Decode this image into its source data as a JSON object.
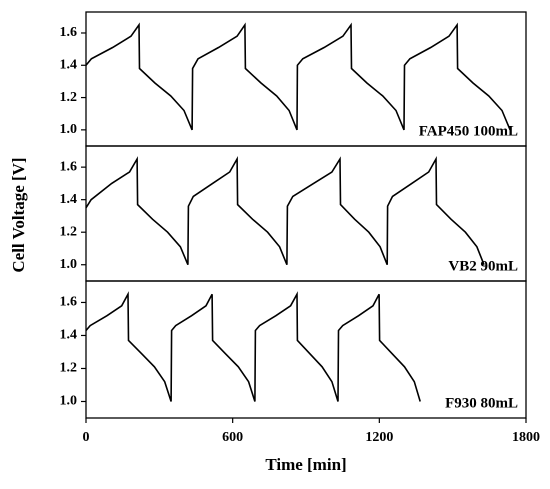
{
  "chart_data": [
    {
      "type": "line",
      "series": [
        {
          "name": "FAP450 100mL",
          "color": "#000000",
          "x": [
            0,
            22,
            109,
            184,
            217,
            219,
            282,
            347,
            401,
            434,
            436,
            458,
            542,
            618,
            650,
            652,
            716,
            780,
            831,
            863,
            865,
            887,
            974,
            1051,
            1084,
            1086,
            1149,
            1214,
            1268,
            1301,
            1303,
            1325,
            1410,
            1485,
            1518,
            1520,
            1583,
            1648,
            1702,
            1735
          ],
          "values": [
            1.4,
            1.44,
            1.51,
            1.58,
            1.65,
            1.38,
            1.29,
            1.21,
            1.12,
            1.0,
            1.38,
            1.44,
            1.51,
            1.58,
            1.65,
            1.38,
            1.29,
            1.21,
            1.12,
            1.0,
            1.4,
            1.44,
            1.51,
            1.58,
            1.65,
            1.38,
            1.29,
            1.21,
            1.12,
            1.0,
            1.4,
            1.44,
            1.51,
            1.58,
            1.65,
            1.38,
            1.29,
            1.21,
            1.12,
            1.0
          ]
        }
      ],
      "xlim": [
        0,
        1800
      ],
      "ylim": [
        0.9,
        1.73
      ],
      "yticks": [
        {
          "value": 1,
          "label": "1.0"
        },
        1.2,
        1.4,
        1.6
      ]
    },
    {
      "type": "line",
      "ylabel": "Cell Voltage [V]",
      "series": [
        {
          "name": "VB2 90mL",
          "color": "#000000",
          "x": [
            0,
            21,
            105,
            178,
            209,
            211,
            272,
            334,
            386,
            417,
            419,
            439,
            518,
            588,
            618,
            620,
            681,
            743,
            792,
            822,
            824,
            846,
            931,
            1006,
            1039,
            1041,
            1099,
            1157,
            1203,
            1232,
            1234,
            1254,
            1333,
            1402,
            1432,
            1434,
            1493,
            1552,
            1599,
            1628
          ],
          "values": [
            1.35,
            1.4,
            1.5,
            1.57,
            1.65,
            1.37,
            1.28,
            1.2,
            1.11,
            1.0,
            1.36,
            1.42,
            1.5,
            1.57,
            1.65,
            1.37,
            1.28,
            1.2,
            1.11,
            1.0,
            1.36,
            1.42,
            1.5,
            1.57,
            1.65,
            1.37,
            1.28,
            1.2,
            1.11,
            1.0,
            1.36,
            1.42,
            1.5,
            1.57,
            1.65,
            1.37,
            1.28,
            1.2,
            1.11,
            1.0
          ]
        }
      ],
      "xlim": [
        0,
        1800
      ],
      "ylim": [
        0.9,
        1.73
      ],
      "yticks": [
        {
          "value": 1,
          "label": "1.0"
        },
        1.2,
        1.4,
        1.6
      ]
    },
    {
      "type": "line",
      "xlabel": "Time [min]",
      "series": [
        {
          "name": "F930 80mL",
          "color": "#000000",
          "x": [
            0,
            17,
            86,
            146,
            172,
            174,
            227,
            280,
            322,
            348,
            350,
            367,
            432,
            491,
            516,
            518,
            570,
            623,
            665,
            691,
            693,
            710,
            777,
            837,
            863,
            865,
            915,
            966,
            1006,
            1031,
            1033,
            1050,
            1115,
            1174,
            1199,
            1201,
            1252,
            1303,
            1343,
            1367
          ],
          "values": [
            1.43,
            1.46,
            1.52,
            1.58,
            1.65,
            1.37,
            1.29,
            1.21,
            1.12,
            1.0,
            1.43,
            1.46,
            1.52,
            1.58,
            1.65,
            1.37,
            1.29,
            1.21,
            1.12,
            1.0,
            1.43,
            1.46,
            1.52,
            1.58,
            1.65,
            1.37,
            1.29,
            1.21,
            1.12,
            1.0,
            1.43,
            1.46,
            1.52,
            1.58,
            1.65,
            1.37,
            1.29,
            1.21,
            1.12,
            1.0
          ]
        }
      ],
      "xlim": [
        0,
        1800
      ],
      "ylim": [
        0.9,
        1.73
      ],
      "yticks": [
        {
          "value": 1,
          "label": "1.0"
        },
        1.2,
        1.4,
        1.6
      ],
      "xticks": [
        0,
        600,
        1200,
        1800
      ]
    }
  ]
}
